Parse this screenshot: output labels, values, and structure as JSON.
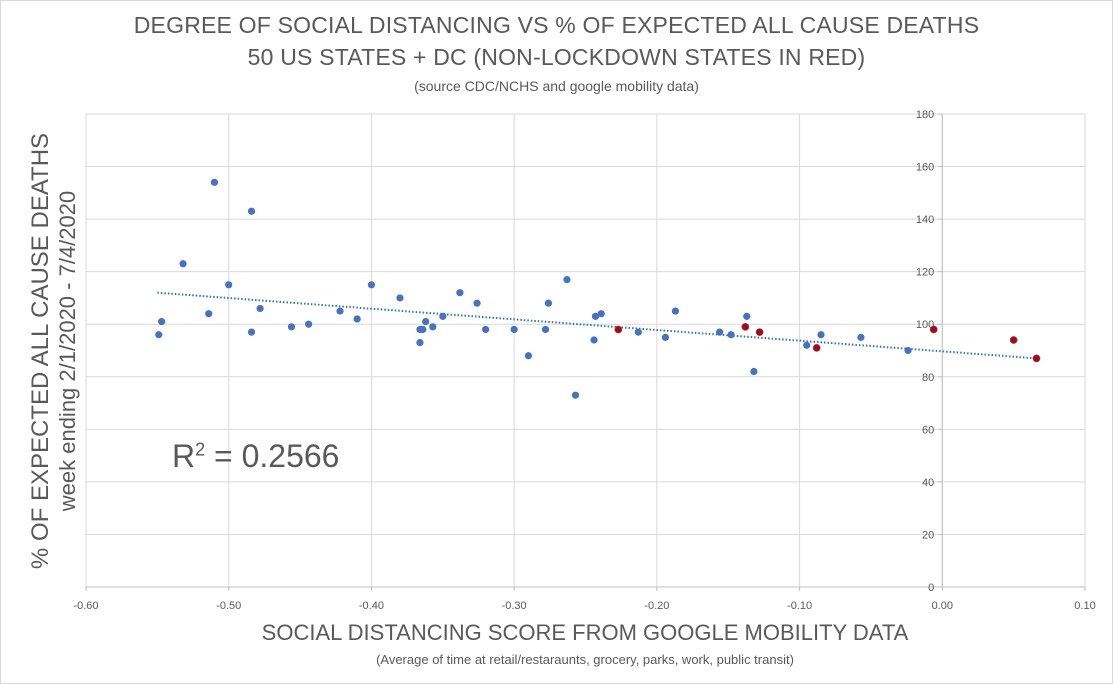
{
  "chart_data": {
    "type": "scatter",
    "title": "DEGREE OF SOCIAL DISTANCING VS % OF EXPECTED ALL CAUSE DEATHS",
    "subtitle": "50 US STATES + DC (NON-LOCKDOWN STATES IN RED)",
    "source": "(source CDC/NCHS and google mobility data)",
    "xlabel": "SOCIAL DISTANCING SCORE FROM GOOGLE MOBILITY DATA",
    "xlabel_sub": "(Average of time at retail/restaraunts, grocery, parks, work, public transit)",
    "ylabel": "% OF EXPECTED ALL CAUSE DEATHS",
    "ylabel_sub": "week ending 2/1/2020 - 7/4/2020",
    "annotation_r2_prefix": "R",
    "annotation_r2_sup": "2",
    "annotation_r2_value": " = 0.2566",
    "xlim": [
      -0.6,
      0.1
    ],
    "ylim": [
      0,
      180
    ],
    "x_ticks": [
      "-0.60",
      "-0.50",
      "-0.40",
      "-0.30",
      "-0.20",
      "-0.10",
      "0.00",
      "0.10"
    ],
    "y_ticks": [
      "0",
      "20",
      "40",
      "60",
      "80",
      "100",
      "120",
      "140",
      "160",
      "180"
    ],
    "grid": true,
    "y_axis_position": "at x = 0",
    "colors": {
      "lockdown": "#4472c4",
      "non_lockdown": "#c00000",
      "trendline": "#2e75b6"
    },
    "trendline": {
      "x": [
        -0.55,
        0.066
      ],
      "y": [
        112,
        87
      ]
    },
    "series": [
      {
        "group": "lockdown",
        "points": [
          [
            -0.549,
            96
          ],
          [
            -0.547,
            101
          ],
          [
            -0.532,
            123
          ],
          [
            -0.514,
            104
          ],
          [
            -0.51,
            154
          ],
          [
            -0.5,
            115
          ],
          [
            -0.484,
            143
          ],
          [
            -0.484,
            97
          ],
          [
            -0.478,
            106
          ],
          [
            -0.456,
            99
          ],
          [
            -0.444,
            100
          ],
          [
            -0.422,
            105
          ],
          [
            -0.41,
            102
          ],
          [
            -0.4,
            115
          ],
          [
            -0.38,
            110
          ],
          [
            -0.366,
            98
          ],
          [
            -0.366,
            93
          ],
          [
            -0.364,
            98
          ],
          [
            -0.362,
            101
          ],
          [
            -0.357,
            99
          ],
          [
            -0.35,
            103
          ],
          [
            -0.338,
            112
          ],
          [
            -0.326,
            108
          ],
          [
            -0.32,
            98
          ],
          [
            -0.3,
            98
          ],
          [
            -0.29,
            88
          ],
          [
            -0.278,
            98
          ],
          [
            -0.276,
            108
          ],
          [
            -0.263,
            117
          ],
          [
            -0.257,
            73
          ],
          [
            -0.244,
            94
          ],
          [
            -0.243,
            103
          ],
          [
            -0.239,
            104
          ],
          [
            -0.213,
            97
          ],
          [
            -0.194,
            95
          ],
          [
            -0.187,
            105
          ],
          [
            -0.156,
            97
          ],
          [
            -0.148,
            96
          ],
          [
            -0.137,
            103
          ],
          [
            -0.132,
            82
          ],
          [
            -0.095,
            92
          ],
          [
            -0.085,
            96
          ],
          [
            -0.057,
            95
          ],
          [
            -0.024,
            90
          ]
        ]
      },
      {
        "group": "non_lockdown",
        "points": [
          [
            -0.227,
            98
          ],
          [
            -0.138,
            99
          ],
          [
            -0.128,
            97
          ],
          [
            -0.088,
            91
          ],
          [
            -0.006,
            98
          ],
          [
            0.05,
            94
          ],
          [
            0.066,
            87
          ]
        ]
      }
    ]
  }
}
